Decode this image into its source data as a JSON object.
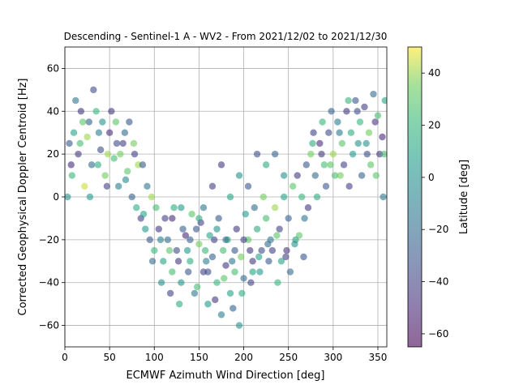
{
  "chart_data": {
    "type": "scatter",
    "title": "Descending - Sentinel-1 A - WV2 - From 2021/12/02 to 2021/12/30",
    "xlabel": "ECMWF Azimuth Wind Direction [deg]",
    "ylabel": "Corrected Geophysical Doppler Centroid [Hz]",
    "xlim": [
      0,
      360
    ],
    "ylim": [
      -70,
      70
    ],
    "xticks": [
      0,
      50,
      100,
      150,
      200,
      250,
      300,
      350
    ],
    "yticks": [
      -60,
      -40,
      -20,
      0,
      20,
      40,
      60
    ],
    "grid": true,
    "colorbar": {
      "label": "Latitude [deg]",
      "range": [
        -65,
        50
      ],
      "ticks": [
        -60,
        -40,
        -20,
        0,
        20,
        40
      ],
      "colormap": "viridis",
      "alpha": 0.6
    },
    "series": [
      {
        "marker": "circle",
        "color_by": "latitude",
        "points": [
          [
            5,
            25,
            -30
          ],
          [
            10,
            30,
            10
          ],
          [
            15,
            20,
            -45
          ],
          [
            20,
            35,
            30
          ],
          [
            25,
            28,
            40
          ],
          [
            30,
            15,
            -20
          ],
          [
            35,
            40,
            20
          ],
          [
            40,
            22,
            -35
          ],
          [
            45,
            10,
            35
          ],
          [
            50,
            30,
            -50
          ],
          [
            55,
            18,
            25
          ],
          [
            60,
            5,
            -10
          ],
          [
            65,
            25,
            -40
          ],
          [
            70,
            12,
            30
          ],
          [
            75,
            0,
            -25
          ],
          [
            80,
            -5,
            15
          ],
          [
            85,
            -10,
            -40
          ],
          [
            90,
            -15,
            5
          ],
          [
            95,
            -20,
            -30
          ],
          [
            100,
            -25,
            20
          ],
          [
            105,
            -15,
            -45
          ],
          [
            110,
            -30,
            10
          ],
          [
            115,
            -20,
            -20
          ],
          [
            120,
            -35,
            25
          ],
          [
            125,
            -25,
            -35
          ],
          [
            130,
            -40,
            0
          ],
          [
            135,
            -18,
            -50
          ],
          [
            140,
            -30,
            15
          ],
          [
            145,
            -45,
            -15
          ],
          [
            150,
            -22,
            35
          ],
          [
            155,
            -35,
            -40
          ],
          [
            160,
            -50,
            5
          ],
          [
            165,
            -28,
            -25
          ],
          [
            170,
            -40,
            20
          ],
          [
            175,
            -55,
            -10
          ],
          [
            180,
            -32,
            -45
          ],
          [
            185,
            -45,
            10
          ],
          [
            190,
            -25,
            -30
          ],
          [
            195,
            -60,
            0
          ],
          [
            200,
            -38,
            -20
          ],
          [
            205,
            -20,
            30
          ],
          [
            210,
            -30,
            -45
          ],
          [
            215,
            -15,
            15
          ],
          [
            220,
            -25,
            -35
          ],
          [
            225,
            -10,
            25
          ],
          [
            230,
            -20,
            -15
          ],
          [
            235,
            -5,
            40
          ],
          [
            240,
            -15,
            -40
          ],
          [
            245,
            0,
            10
          ],
          [
            250,
            -10,
            -25
          ],
          [
            255,
            5,
            30
          ],
          [
            260,
            10,
            -45
          ],
          [
            265,
            0,
            20
          ],
          [
            270,
            15,
            -30
          ],
          [
            275,
            20,
            35
          ],
          [
            280,
            10,
            -20
          ],
          [
            285,
            25,
            -50
          ],
          [
            290,
            15,
            25
          ],
          [
            295,
            30,
            -35
          ],
          [
            300,
            20,
            40
          ],
          [
            305,
            35,
            -10
          ],
          [
            310,
            25,
            30
          ],
          [
            315,
            40,
            -45
          ],
          [
            320,
            30,
            15
          ],
          [
            325,
            45,
            -30
          ],
          [
            330,
            35,
            20
          ],
          [
            335,
            42,
            -40
          ],
          [
            340,
            30,
            35
          ],
          [
            345,
            48,
            -20
          ],
          [
            350,
            38,
            25
          ],
          [
            355,
            28,
            -50
          ],
          [
            358,
            45,
            10
          ],
          [
            12,
            45,
            -15
          ],
          [
            22,
            5,
            45
          ],
          [
            32,
            50,
            -35
          ],
          [
            42,
            35,
            0
          ],
          [
            52,
            40,
            -45
          ],
          [
            62,
            20,
            35
          ],
          [
            72,
            35,
            -30
          ],
          [
            82,
            15,
            40
          ],
          [
            92,
            5,
            -15
          ],
          [
            102,
            -5,
            25
          ],
          [
            112,
            -10,
            -40
          ],
          [
            122,
            -5,
            15
          ],
          [
            132,
            -15,
            -25
          ],
          [
            142,
            -8,
            30
          ],
          [
            152,
            -12,
            -40
          ],
          [
            162,
            -18,
            10
          ],
          [
            172,
            -10,
            -30
          ],
          [
            182,
            -20,
            20
          ],
          [
            192,
            -15,
            -45
          ],
          [
            202,
            -8,
            5
          ],
          [
            212,
            -5,
            -20
          ],
          [
            222,
            0,
            35
          ],
          [
            232,
            -25,
            -40
          ],
          [
            242,
            -30,
            10
          ],
          [
            252,
            -35,
            -20
          ],
          [
            262,
            -18,
            30
          ],
          [
            272,
            -5,
            -45
          ],
          [
            282,
            0,
            15
          ],
          [
            292,
            5,
            -30
          ],
          [
            302,
            10,
            25
          ],
          [
            312,
            15,
            -40
          ],
          [
            322,
            20,
            5
          ],
          [
            332,
            10,
            -25
          ],
          [
            342,
            15,
            30
          ],
          [
            352,
            20,
            -45
          ],
          [
            8,
            10,
            20
          ],
          [
            18,
            40,
            -45
          ],
          [
            28,
            0,
            5
          ],
          [
            38,
            30,
            -10
          ],
          [
            48,
            20,
            40
          ],
          [
            58,
            25,
            -35
          ],
          [
            68,
            8,
            -5
          ],
          [
            78,
            20,
            -40
          ],
          [
            88,
            -8,
            10
          ],
          [
            98,
            -30,
            -20
          ],
          [
            108,
            -40,
            0
          ],
          [
            118,
            -45,
            -40
          ],
          [
            128,
            -50,
            15
          ],
          [
            138,
            -35,
            -30
          ],
          [
            148,
            -42,
            25
          ],
          [
            158,
            -30,
            -10
          ],
          [
            168,
            -48,
            -45
          ],
          [
            178,
            -38,
            30
          ],
          [
            188,
            -52,
            -25
          ],
          [
            198,
            -45,
            15
          ],
          [
            208,
            -40,
            -40
          ],
          [
            218,
            -35,
            5
          ],
          [
            228,
            -30,
            -30
          ],
          [
            238,
            -40,
            20
          ],
          [
            248,
            -25,
            -45
          ],
          [
            258,
            -20,
            10
          ],
          [
            268,
            -10,
            -15
          ],
          [
            278,
            30,
            -40
          ],
          [
            288,
            35,
            20
          ],
          [
            298,
            40,
            -25
          ],
          [
            308,
            10,
            35
          ],
          [
            318,
            5,
            -40
          ],
          [
            328,
            25,
            0
          ],
          [
            338,
            20,
            -35
          ],
          [
            348,
            10,
            30
          ],
          [
            356,
            0,
            -15
          ],
          [
            3,
            0,
            0
          ],
          [
            7,
            15,
            -50
          ],
          [
            17,
            25,
            25
          ],
          [
            27,
            35,
            -25
          ],
          [
            37,
            15,
            15
          ],
          [
            47,
            5,
            -40
          ],
          [
            57,
            35,
            30
          ],
          [
            67,
            30,
            -20
          ],
          [
            77,
            25,
            35
          ],
          [
            87,
            15,
            -30
          ],
          [
            97,
            0,
            40
          ],
          [
            107,
            -20,
            -10
          ],
          [
            117,
            -25,
            30
          ],
          [
            127,
            -30,
            -45
          ],
          [
            137,
            -25,
            5
          ],
          [
            147,
            -15,
            -30
          ],
          [
            157,
            -25,
            20
          ],
          [
            167,
            -20,
            -40
          ],
          [
            177,
            -25,
            25
          ],
          [
            187,
            -30,
            -15
          ],
          [
            197,
            -28,
            35
          ],
          [
            207,
            -25,
            -45
          ],
          [
            217,
            -28,
            10
          ],
          [
            227,
            -22,
            -20
          ],
          [
            237,
            -18,
            30
          ],
          [
            247,
            -28,
            -40
          ],
          [
            257,
            -22,
            0
          ],
          [
            267,
            -28,
            -30
          ],
          [
            277,
            25,
            15
          ],
          [
            287,
            20,
            -45
          ],
          [
            297,
            15,
            30
          ],
          [
            307,
            30,
            -15
          ],
          [
            317,
            45,
            20
          ],
          [
            327,
            40,
            -35
          ],
          [
            337,
            25,
            0
          ],
          [
            347,
            35,
            -45
          ],
          [
            357,
            20,
            25
          ],
          [
            120,
            -10,
            -50
          ],
          [
            130,
            -5,
            5
          ],
          [
            140,
            -20,
            -25
          ],
          [
            150,
            -10,
            15
          ],
          [
            160,
            -35,
            -35
          ],
          [
            170,
            -15,
            0
          ],
          [
            180,
            -20,
            -20
          ],
          [
            190,
            -35,
            25
          ],
          [
            200,
            -20,
            -40
          ],
          [
            210,
            -35,
            10
          ],
          [
            155,
            -5,
            -15
          ],
          [
            175,
            15,
            -45
          ],
          [
            195,
            10,
            0
          ],
          [
            215,
            20,
            -35
          ],
          [
            225,
            15,
            15
          ],
          [
            235,
            20,
            -25
          ],
          [
            245,
            10,
            0
          ],
          [
            165,
            5,
            -40
          ],
          [
            185,
            0,
            10
          ],
          [
            205,
            5,
            -30
          ]
        ]
      }
    ]
  }
}
